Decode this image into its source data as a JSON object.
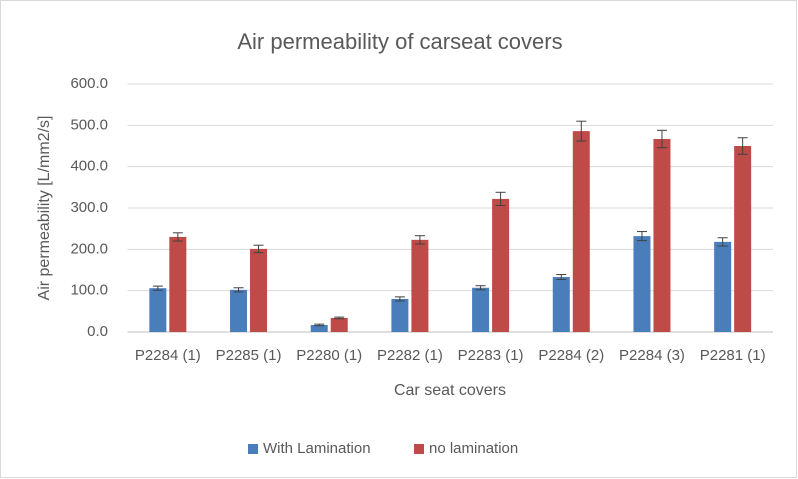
{
  "chart_data": {
    "type": "bar",
    "title": "Air permeability of carseat covers",
    "xlabel": "Car seat covers",
    "ylabel": "Air permeability [L/mm2/s]",
    "categories": [
      "P2284 (1)",
      "P2285 (1)",
      "P2280 (1)",
      "P2282 (1)",
      "P2283 (1)",
      "P2284 (2)",
      "P2284 (3)",
      "P2281 (1)"
    ],
    "series": [
      {
        "name": "With Lamination",
        "color": "#4a7ebb",
        "values": [
          106,
          102,
          17,
          80,
          107,
          133,
          232,
          218
        ],
        "errors": [
          5,
          5,
          2,
          5,
          5,
          6,
          11,
          10
        ]
      },
      {
        "name": "no lamination",
        "color": "#be4b48",
        "values": [
          230,
          201,
          34,
          223,
          322,
          486,
          467,
          450
        ],
        "errors": [
          10,
          9,
          2,
          10,
          16,
          24,
          21,
          20
        ]
      }
    ],
    "ylim": [
      0,
      600
    ],
    "yticks": [
      {
        "value": 0,
        "label": "0.0"
      },
      {
        "value": 100,
        "label": "100.0"
      },
      {
        "value": 200,
        "label": "200.0"
      },
      {
        "value": 300,
        "label": "300.0"
      },
      {
        "value": 400,
        "label": "400.0"
      },
      {
        "value": 500,
        "label": "500.0"
      },
      {
        "value": 600,
        "label": "600.0"
      }
    ],
    "grid": true,
    "legend": "bottom"
  }
}
